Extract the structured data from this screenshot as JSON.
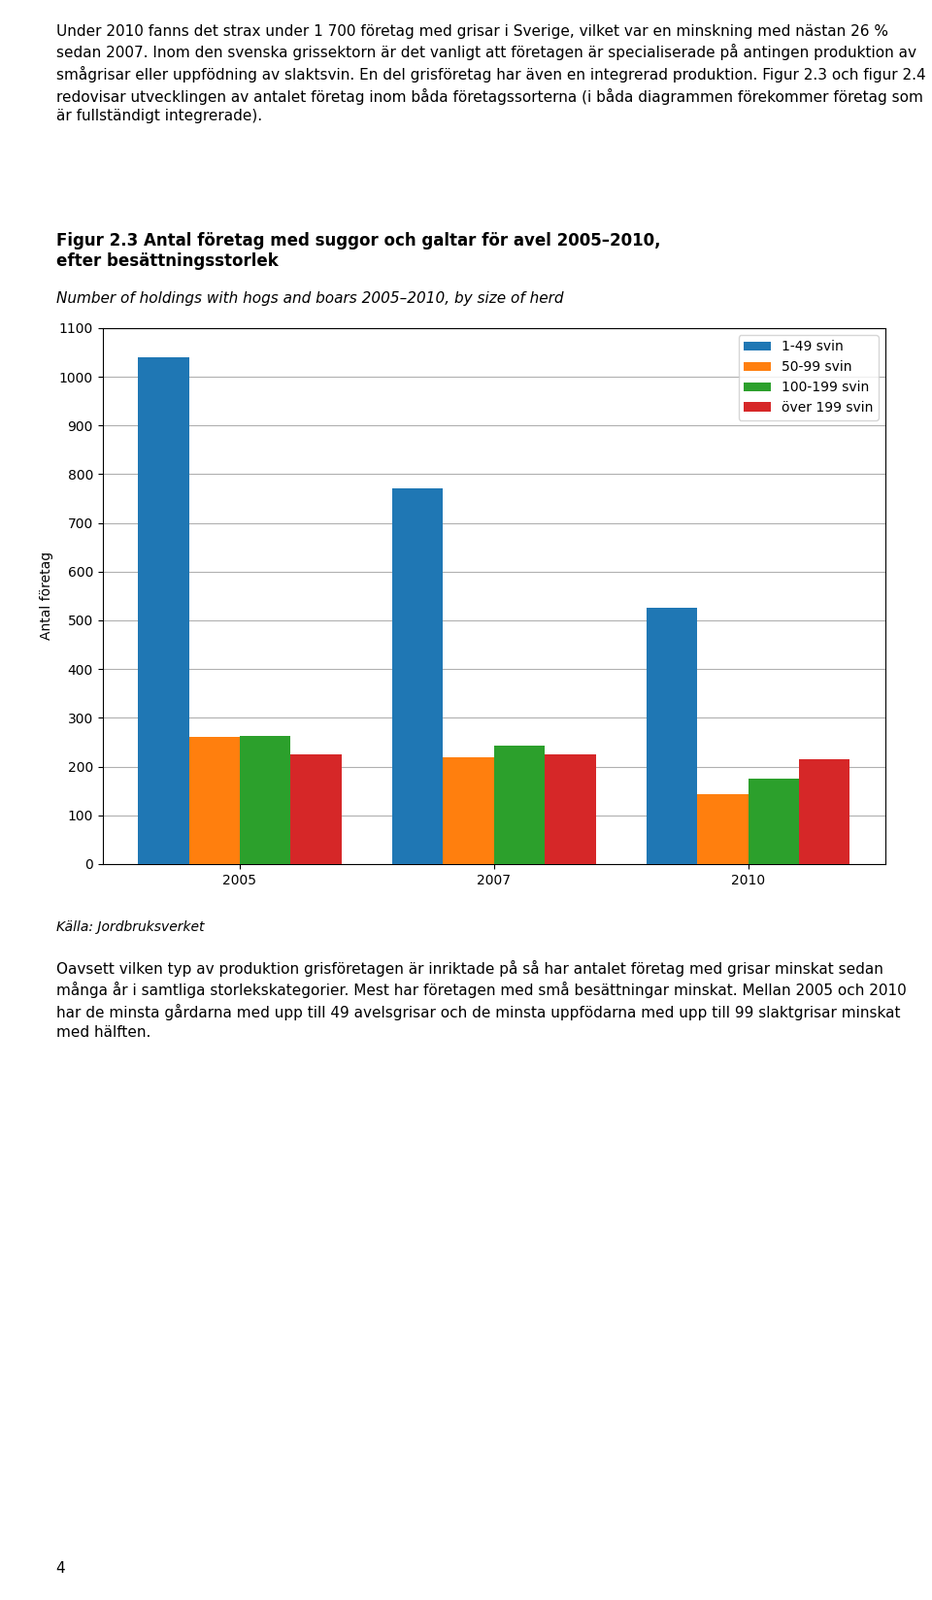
{
  "chart_data": {
    "type": "bar",
    "title": "Figur 2.3 Antal företag med suggor och galtar för avel 2005–2010,\nefter besättningsstorlek",
    "subtitle": "Number of holdings with hogs and boars 2005–2010, by size of herd",
    "ylabel": "Antal företag",
    "categories": [
      "2005",
      "2007",
      "2010"
    ],
    "series": [
      {
        "name": "1-49 svin",
        "values": [
          1040,
          770,
          525
        ]
      },
      {
        "name": "50-99 svin",
        "values": [
          260,
          220,
          143
        ]
      },
      {
        "name": "100-199 svin",
        "values": [
          263,
          243,
          175
        ]
      },
      {
        "name": "över 199 svin",
        "values": [
          225,
          225,
          215
        ]
      }
    ],
    "ylim": [
      0,
      1100
    ],
    "yticks": [
      0,
      100,
      200,
      300,
      400,
      500,
      600,
      700,
      800,
      900,
      1000,
      1100
    ],
    "grid": true,
    "legend": "upper right",
    "annotations": [
      "Under 2010 fanns det strax under 1 700 företag med grisar i Sverige, vilket var en minskning med nästan 26 % sedan 2007. Inom den svenska grissektorn är det vanligt att företagen är specialiserade på antingen produktion av smågrisar eller uppfödning av slaktsvin. En del grisföretag har även en integrerad produktion. Figur 2.3 och figur 2.4 redovisar utvecklingen av antalet företag inom båda företagssorterna (i båda diagrammen förekommer företag som är fullständigt integrerade).",
      "Källa: Jordbruksverket",
      "Oavsett vilken typ av produktion grisföretagen är inriktade på så har antalet företag med grisar minskat sedan många år i samtliga storlekskategorier. Mest har företagen med små besättningar minskat. Mellan 2005 och 2010 har de minsta gårdarna med upp till 49 avelsgrisar och de minsta uppfödarna med upp till 99 slaktgrisar minskat med hälften.",
      "4"
    ]
  }
}
